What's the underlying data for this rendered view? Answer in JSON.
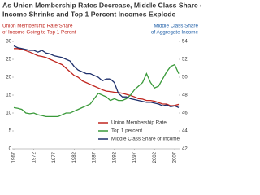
{
  "chart_data": {
    "type": "line",
    "title": [
      "As Union Membership Rates Decrease, Middle Class Share of",
      "Income Shrinks and Top 1 Percent Incomes Explode"
    ],
    "y_label": [
      "Union Membership Rate/Share",
      "of Income Going to Top 1 Perent"
    ],
    "y2_label": [
      "Middle Class Share",
      "of Aggregate Income"
    ],
    "x": [
      1967,
      1968,
      1969,
      1970,
      1971,
      1972,
      1973,
      1974,
      1975,
      1976,
      1977,
      1978,
      1979,
      1980,
      1981,
      1982,
      1983,
      1984,
      1985,
      1986,
      1987,
      1988,
      1989,
      1990,
      1991,
      1992,
      1993,
      1994,
      1995,
      1996,
      1997,
      1998,
      1999,
      2000,
      2001,
      2002,
      2003,
      2004,
      2005,
      2006,
      2007,
      2008
    ],
    "series": [
      {
        "name": "Union Membership Rate",
        "color": "#c0261f",
        "values": [
          28,
          28,
          27.8,
          27.4,
          27,
          26.5,
          26,
          25.8,
          25.5,
          25,
          24.5,
          24,
          23.5,
          22.5,
          21.5,
          20.5,
          20,
          19,
          18.5,
          18,
          17.5,
          17,
          16.5,
          16.1,
          16,
          15.8,
          15.7,
          15.5,
          15.2,
          14.9,
          14.5,
          14,
          13.9,
          13.5,
          13.5,
          13.3,
          12.9,
          12.5,
          12.5,
          12,
          12.1,
          12.4
        ]
      },
      {
        "name": "Top 1 percent",
        "color": "#3a9a3a",
        "values": [
          11.5,
          11.3,
          11,
          10,
          9.8,
          10,
          9.5,
          9.3,
          9,
          9,
          9,
          9,
          9.5,
          10,
          10,
          10.5,
          11,
          11.5,
          12,
          12.5,
          14,
          15.5,
          15,
          14.5,
          13.5,
          14,
          13.5,
          13.5,
          14,
          15,
          16.5,
          17.5,
          18.5,
          21,
          18.5,
          17,
          17.5,
          19.5,
          21.5,
          23,
          23.5,
          21
        ]
      },
      {
        "name": "Middle Class Share of Income",
        "color": "#1d2f6b",
        "axis": "y2",
        "values": [
          53.5,
          53.3,
          53.2,
          53.1,
          53,
          53,
          52.8,
          53,
          52.7,
          52.6,
          52.4,
          52.3,
          52.2,
          52,
          51.8,
          51.2,
          50.8,
          50.6,
          50.4,
          50.4,
          50.2,
          50,
          49.6,
          49.8,
          49.8,
          49.4,
          48.2,
          47.8,
          47.8,
          47.6,
          47.5,
          47.4,
          47.3,
          47.2,
          47.2,
          47.1,
          47,
          46.8,
          46.9,
          46.7,
          46.8,
          46.6
        ]
      }
    ],
    "xlim": [
      1967,
      2008
    ],
    "xticks": [
      1967,
      1972,
      1977,
      1982,
      1987,
      1992,
      1997,
      2002,
      2007
    ],
    "ylim": [
      0,
      30
    ],
    "yticks": [
      0,
      5,
      10,
      15,
      20,
      25,
      30
    ],
    "y2lim": [
      42,
      54
    ],
    "y2ticks": [
      42,
      44,
      46,
      48,
      50,
      52,
      54
    ],
    "y_label_color": "#c0261f",
    "y2_label_color": "#1f5fa8"
  }
}
